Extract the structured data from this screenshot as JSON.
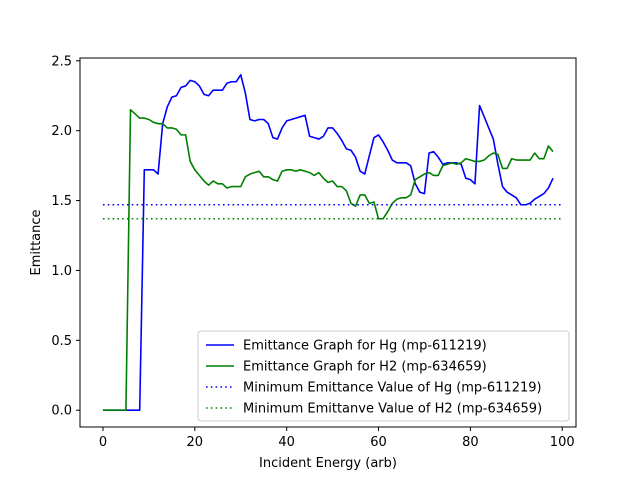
{
  "chart_data": {
    "type": "line",
    "title": "",
    "xlabel": "Incident Energy (arb)",
    "ylabel": "Emittance",
    "xlim": [
      -5,
      103
    ],
    "ylim": [
      -0.12,
      2.52
    ],
    "xticks": [
      0,
      20,
      40,
      60,
      80,
      100
    ],
    "yticks": [
      0.0,
      0.5,
      1.0,
      1.5,
      2.0,
      2.5
    ],
    "xtick_labels": [
      "0",
      "20",
      "40",
      "60",
      "80",
      "100"
    ],
    "ytick_labels": [
      "0.0",
      "0.5",
      "1.0",
      "1.5",
      "2.0",
      "2.5"
    ],
    "grid": false,
    "legend_position": "lower-right",
    "series": [
      {
        "name": "Emittance Graph for Hg (mp-611219)",
        "color": "#0000ff",
        "linestyle": "solid",
        "x": [
          0,
          1,
          2,
          3,
          4,
          5,
          6,
          7,
          8,
          9,
          10,
          11,
          12,
          13,
          14,
          15,
          16,
          17,
          18,
          19,
          20,
          21,
          22,
          23,
          24,
          25,
          26,
          27,
          28,
          29,
          30,
          31,
          32,
          33,
          34,
          35,
          36,
          37,
          38,
          39,
          40,
          41,
          42,
          43,
          44,
          45,
          46,
          47,
          48,
          49,
          50,
          51,
          52,
          53,
          54,
          55,
          56,
          57,
          58,
          59,
          60,
          61,
          62,
          63,
          64,
          65,
          66,
          67,
          68,
          69,
          70,
          71,
          72,
          73,
          74,
          75,
          76,
          77,
          78,
          79,
          80,
          81,
          82,
          83,
          84,
          85,
          86,
          87,
          88,
          89,
          90,
          91,
          92,
          93,
          94,
          95,
          96,
          97,
          98
        ],
        "y": [
          0.0,
          0.0,
          0.0,
          0.0,
          0.0,
          0.0,
          0.0,
          0.0,
          0.0,
          1.72,
          1.72,
          1.72,
          1.69,
          2.05,
          2.17,
          2.24,
          2.25,
          2.31,
          2.32,
          2.36,
          2.35,
          2.32,
          2.26,
          2.25,
          2.29,
          2.29,
          2.29,
          2.34,
          2.35,
          2.35,
          2.4,
          2.27,
          2.08,
          2.07,
          2.08,
          2.08,
          2.05,
          1.95,
          1.94,
          2.02,
          2.07,
          2.08,
          2.09,
          2.1,
          2.11,
          1.96,
          1.95,
          1.94,
          1.96,
          2.02,
          2.02,
          1.98,
          1.93,
          1.87,
          1.86,
          1.81,
          1.71,
          1.69,
          1.82,
          1.95,
          1.97,
          1.92,
          1.86,
          1.79,
          1.77,
          1.77,
          1.77,
          1.75,
          1.62,
          1.56,
          1.55,
          1.84,
          1.85,
          1.81,
          1.76,
          1.77,
          1.77,
          1.77,
          1.76,
          1.66,
          1.65,
          1.62,
          2.18,
          2.1,
          2.02,
          1.94,
          1.76,
          1.6,
          1.56,
          1.54,
          1.52,
          1.47,
          1.47,
          1.48,
          1.51,
          1.53,
          1.55,
          1.59,
          1.66
        ]
      },
      {
        "name": "Emittance Graph for H2 (mp-634659)",
        "color": "#008000",
        "linestyle": "solid",
        "x": [
          0,
          1,
          2,
          3,
          4,
          5,
          6,
          7,
          8,
          9,
          10,
          11,
          12,
          13,
          14,
          15,
          16,
          17,
          18,
          19,
          20,
          21,
          22,
          23,
          24,
          25,
          26,
          27,
          28,
          29,
          30,
          31,
          32,
          33,
          34,
          35,
          36,
          37,
          38,
          39,
          40,
          41,
          42,
          43,
          44,
          45,
          46,
          47,
          48,
          49,
          50,
          51,
          52,
          53,
          54,
          55,
          56,
          57,
          58,
          59,
          60,
          61,
          62,
          63,
          64,
          65,
          66,
          67,
          68,
          69,
          70,
          71,
          72,
          73,
          74,
          75,
          76,
          77,
          78,
          79,
          80,
          81,
          82,
          83,
          84,
          85,
          86,
          87,
          88,
          89,
          90,
          91,
          92,
          93,
          94,
          95,
          96,
          97,
          98
        ],
        "y": [
          0.0,
          0.0,
          0.0,
          0.0,
          0.0,
          0.0,
          2.15,
          2.12,
          2.09,
          2.09,
          2.08,
          2.06,
          2.05,
          2.05,
          2.02,
          2.02,
          2.01,
          1.97,
          1.97,
          1.78,
          1.72,
          1.68,
          1.64,
          1.61,
          1.64,
          1.62,
          1.62,
          1.59,
          1.6,
          1.6,
          1.6,
          1.67,
          1.69,
          1.7,
          1.71,
          1.67,
          1.67,
          1.65,
          1.64,
          1.71,
          1.72,
          1.72,
          1.71,
          1.72,
          1.71,
          1.7,
          1.68,
          1.7,
          1.66,
          1.63,
          1.64,
          1.6,
          1.6,
          1.57,
          1.48,
          1.46,
          1.54,
          1.54,
          1.48,
          1.49,
          1.37,
          1.37,
          1.42,
          1.48,
          1.51,
          1.52,
          1.52,
          1.54,
          1.65,
          1.67,
          1.69,
          1.7,
          1.68,
          1.68,
          1.75,
          1.76,
          1.77,
          1.76,
          1.77,
          1.8,
          1.79,
          1.78,
          1.78,
          1.79,
          1.82,
          1.84,
          1.83,
          1.73,
          1.73,
          1.8,
          1.79,
          1.79,
          1.79,
          1.79,
          1.84,
          1.8,
          1.8,
          1.89,
          1.85
        ]
      },
      {
        "name": "Minimum Emittance Value of Hg (mp-611219)",
        "color": "#0000ff",
        "linestyle": "dotted",
        "x": [
          0,
          100
        ],
        "y": [
          1.47,
          1.47
        ]
      },
      {
        "name": "Minimum Emittanve Value of H2 (mp-634659)",
        "color": "#008000",
        "linestyle": "dotted",
        "x": [
          0,
          100
        ],
        "y": [
          1.37,
          1.37
        ]
      }
    ]
  }
}
